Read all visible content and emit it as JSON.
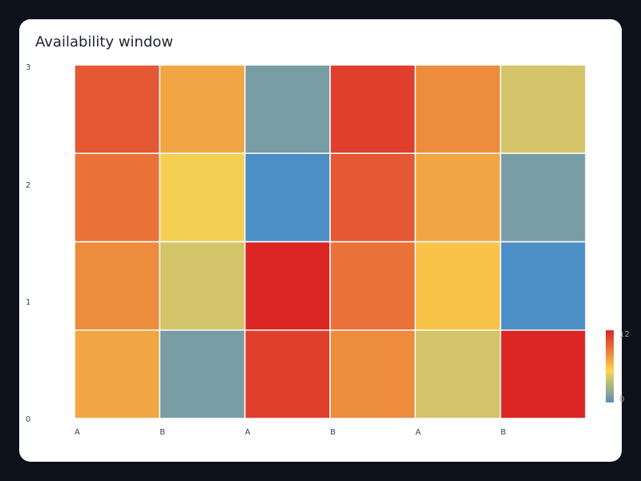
{
  "chart_data": {
    "type": "heatmap",
    "title": "Availability window",
    "x_tick_labels": [
      "A",
      "B",
      "A",
      "B",
      "A",
      "B"
    ],
    "y_tick_labels": [
      "0",
      "1",
      "2",
      "3"
    ],
    "rows_bottom_to_top": [
      [
        7,
        1,
        11,
        8,
        4,
        12
      ],
      [
        8,
        4,
        12,
        9,
        6,
        0
      ],
      [
        9,
        5,
        0,
        10,
        7,
        1
      ],
      [
        10,
        7,
        1,
        11,
        8,
        4
      ]
    ],
    "colorscale": {
      "min": 0,
      "max": 12,
      "colors": [
        "#4b8fc6",
        "#88a29a",
        "#a8b580",
        "#d4c46a",
        "#fdd44a",
        "#f4af45",
        "#ed8c3c",
        "#e96938",
        "#e1472f",
        "#dc2626"
      ]
    },
    "colorbar": {
      "min_label": "0",
      "max_label": "12"
    }
  }
}
